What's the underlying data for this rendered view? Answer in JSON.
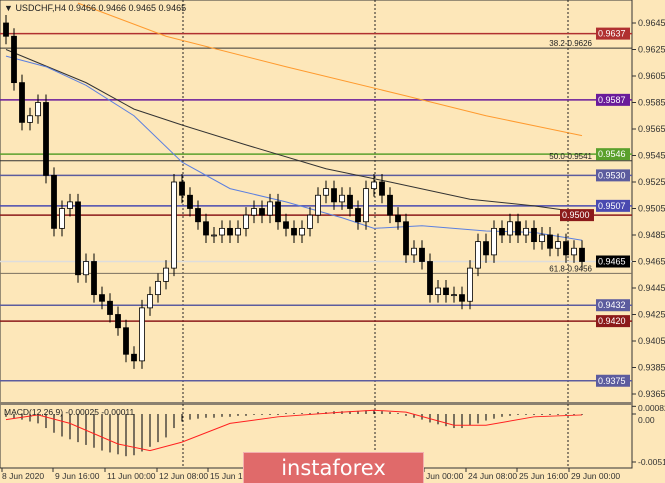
{
  "header": {
    "symbol": "USDCHF,H4",
    "ohlc": "0.9466 0.9466 0.9465 0.9465"
  },
  "watermark": "instaforex",
  "chart_data": [
    {
      "type": "candlestick",
      "symbol": "USDCHF",
      "timeframe": "H4",
      "y_ticks": [
        "0.9645",
        "0.9625",
        "0.9605",
        "0.9585",
        "0.9565",
        "0.9545",
        "0.9525",
        "0.9505",
        "0.9485",
        "0.9465",
        "0.9445",
        "0.9425",
        "0.9405",
        "0.9385",
        "0.9365"
      ],
      "ylim": [
        0.9365,
        0.966
      ],
      "x_tick_labels": [
        "8 Jun 2020",
        "9 Jun 16:00",
        "11 Jun 00:00",
        "12 Jun 08:00",
        "15 Jun 16:00",
        "Jun 00:00",
        "24 Jun 08:00",
        "25 Jun 16:00",
        "29 Jun 00:00"
      ],
      "first_open": 0.9645,
      "closes": [
        0.9635,
        0.96,
        0.957,
        0.9575,
        0.9585,
        0.953,
        0.949,
        0.9505,
        0.951,
        0.9455,
        0.9465,
        0.944,
        0.9435,
        0.9425,
        0.9415,
        0.9395,
        0.939,
        0.943,
        0.944,
        0.945,
        0.946,
        0.9525,
        0.9515,
        0.9505,
        0.9495,
        0.9485,
        0.9485,
        0.949,
        0.9485,
        0.949,
        0.95,
        0.9505,
        0.95,
        0.951,
        0.9495,
        0.949,
        0.9485,
        0.949,
        0.95,
        0.9515,
        0.952,
        0.951,
        0.9515,
        0.9505,
        0.9495,
        0.952,
        0.9525,
        0.9515,
        0.95,
        0.9495,
        0.947,
        0.9475,
        0.9465,
        0.944,
        0.9445,
        0.944,
        0.944,
        0.9435,
        0.946,
        0.948,
        0.947,
        0.949,
        0.9485,
        0.9495,
        0.9485,
        0.949,
        0.948,
        0.9485,
        0.9475,
        0.948,
        0.947,
        0.9475,
        0.9465
      ],
      "moving_averages": [
        {
          "color": "#333333",
          "points": [
            [
              0,
              0.9625
            ],
            [
              10,
              0.96
            ],
            [
              16,
              0.958
            ],
            [
              22,
              0.9568
            ],
            [
              30,
              0.9553
            ],
            [
              40,
              0.9535
            ],
            [
              48,
              0.9525
            ],
            [
              58,
              0.9512
            ],
            [
              66,
              0.9507
            ],
            [
              72,
              0.9502
            ]
          ]
        },
        {
          "color": "#ff9a2e",
          "points": [
            [
              9,
              0.966
            ],
            [
              20,
              0.9635
            ],
            [
              35,
              0.9612
            ],
            [
              50,
              0.959
            ],
            [
              60,
              0.9575
            ],
            [
              72,
              0.956
            ]
          ]
        },
        {
          "color": "#5b7fe0",
          "points": [
            [
              0,
              0.962
            ],
            [
              5,
              0.9612
            ],
            [
              10,
              0.9598
            ],
            [
              16,
              0.9575
            ],
            [
              22,
              0.954
            ],
            [
              28,
              0.952
            ],
            [
              35,
              0.951
            ],
            [
              42,
              0.9498
            ],
            [
              46,
              0.949
            ],
            [
              52,
              0.9492
            ],
            [
              60,
              0.9488
            ],
            [
              66,
              0.9487
            ],
            [
              72,
              0.9481
            ]
          ]
        }
      ],
      "levels": [
        {
          "price": 0.9637,
          "label": "0.9637",
          "color": "#b03030",
          "tag": true
        },
        {
          "price": 0.9626,
          "label": "38.2-0.9626",
          "color": "#333333",
          "tag": false
        },
        {
          "price": 0.9587,
          "label": "0.9587",
          "color": "#6a1b9a",
          "tag": true
        },
        {
          "price": 0.9546,
          "label": "0.9546",
          "color": "#5aa02c",
          "tag": true
        },
        {
          "price": 0.9541,
          "label": "50.0-0.9541",
          "color": "#333333",
          "tag": false
        },
        {
          "price": 0.953,
          "label": "0.9530",
          "color": "#5c5c9e",
          "tag": true
        },
        {
          "price": 0.9507,
          "label": "0.9507",
          "color": "#4a4ab0",
          "tag": true
        },
        {
          "price": 0.95,
          "label": "0.9500",
          "color": "#8b1a1a",
          "tag": true
        },
        {
          "price": 0.9465,
          "label": "0.9465",
          "color": "#dddddd",
          "tag": true,
          "tag_color": "#000000"
        },
        {
          "price": 0.9456,
          "label": "61.8-0.9456",
          "color": "#7a7060",
          "tag": false
        },
        {
          "price": 0.9432,
          "label": "0.9432",
          "color": "#5c5c9e",
          "tag": true
        },
        {
          "price": 0.942,
          "label": "0.9420",
          "color": "#8b1a1a",
          "tag": true
        },
        {
          "price": 0.9375,
          "label": "0.9375",
          "color": "#5c5c9e",
          "tag": true
        }
      ]
    },
    {
      "type": "bar",
      "title": "MACD(12,26,9) -0.00025 -0.00011",
      "y_ticks": [
        "0.00082",
        "0.00",
        "-0.00512"
      ],
      "histogram": [
        -0.0003,
        -0.0005,
        -0.0006,
        -0.0008,
        -0.001,
        -0.0015,
        -0.002,
        -0.0024,
        -0.0027,
        -0.003,
        -0.0033,
        -0.0036,
        -0.0039,
        -0.0041,
        -0.0043,
        -0.0045,
        -0.0044,
        -0.004,
        -0.0035,
        -0.003,
        -0.0025,
        -0.0015,
        -0.0008,
        -0.0006,
        -0.0005,
        -0.0004,
        -0.0004,
        -0.0003,
        -0.0003,
        -0.0002,
        -0.0002,
        -0.0001,
        -0.0001,
        0,
        0,
        0.0001,
        0.0001,
        0.0001,
        0.0001,
        0.0002,
        0.0002,
        0.0003,
        0.0003,
        0.0003,
        0.0003,
        0.0004,
        0.0004,
        0.0003,
        0.0002,
        0.0001,
        -0.0002,
        -0.0004,
        -0.0006,
        -0.0009,
        -0.0011,
        -0.0013,
        -0.0015,
        -0.0015,
        -0.0012,
        -0.001,
        -0.0007,
        -0.0005,
        -0.0003,
        -0.0002,
        -0.0001,
        -0.0001,
        0,
        0,
        0,
        -0.0001,
        -0.0001,
        -0.0001,
        -0.0001
      ],
      "signal": [
        [
          0,
          -0.0006
        ],
        [
          4,
          -0.0001
        ],
        [
          8,
          -0.001
        ],
        [
          14,
          -0.0032
        ],
        [
          18,
          -0.0039
        ],
        [
          22,
          -0.003
        ],
        [
          28,
          -0.001
        ],
        [
          34,
          -0.0003
        ],
        [
          42,
          0.0002
        ],
        [
          46,
          0.0004
        ],
        [
          50,
          0.0002
        ],
        [
          56,
          -0.0012
        ],
        [
          60,
          -0.0012
        ],
        [
          66,
          -0.0003
        ],
        [
          72,
          -0.0001
        ]
      ],
      "signal_color": "#ff2020"
    }
  ]
}
